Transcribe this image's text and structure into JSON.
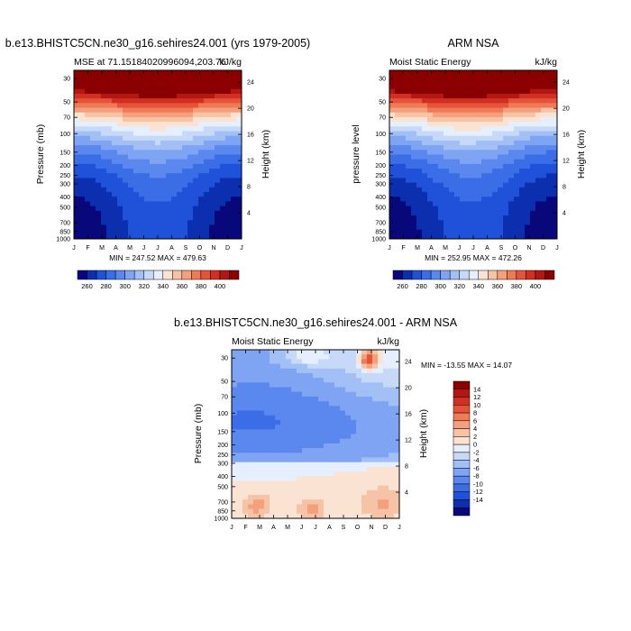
{
  "figure": {
    "panel_left": {
      "title": "b.e13.BHISTC5CN.ne30_g16.sehires24.001 (yrs 1979-2005)",
      "subtitle_left": "MSE at 71.15184020996094,203.76",
      "subtitle_right": "kJ/kg",
      "ylabel": "Pressure (mb)",
      "ylabel_right": "Height (km)",
      "minmax": "MIN = 247.52 MAX = 479.63"
    },
    "panel_right": {
      "title": "ARM NSA",
      "subtitle_left": "Moist Static Energy",
      "subtitle_right": "kJ/kg",
      "ylabel": "pressure level",
      "ylabel_right": "Height (km)",
      "minmax": "MIN = 252.95 MAX = 472.26"
    },
    "panel_diff": {
      "title": "b.e13.BHISTC5CN.ne30_g16.sehires24.001 - ARM NSA",
      "subtitle_left": "Moist Static Energy",
      "subtitle_right": "kJ/kg",
      "ylabel": "Pressure (mb)",
      "ylabel_right": "Height (km)",
      "minmax": "MIN = -13.55 MAX =  14.07"
    }
  },
  "colors": {
    "mse_scale": [
      "#08087a",
      "#0c2fb0",
      "#1f51d9",
      "#3a6de6",
      "#5a88ef",
      "#7ea4f3",
      "#a3c0f6",
      "#c6d9f8",
      "#e6efff",
      "#fbe3d3",
      "#f7c3a6",
      "#f4a07c",
      "#ef7a55",
      "#e5533a",
      "#d12f22",
      "#b31712",
      "#8b0000"
    ],
    "diff_scale": [
      "#08087a",
      "#0c2fb0",
      "#1f51d9",
      "#3a6de6",
      "#5a88ef",
      "#7ea4f3",
      "#a3c0f6",
      "#c6d9f8",
      "#e6efff",
      "#fbe3d3",
      "#f7c3a6",
      "#f4a07c",
      "#ef7a55",
      "#e5533a",
      "#d12f22",
      "#b31712",
      "#8b0000"
    ]
  },
  "chart_data": [
    {
      "id": "model",
      "type": "heatmap",
      "title": "b.e13.BHISTC5CN.ne30_g16.sehires24.001 (yrs 1979-2005)",
      "subtitle": "MSE at 71.15184020996094,203.76",
      "units": "kJ/kg",
      "x": [
        "J",
        "F",
        "M",
        "A",
        "M",
        "J",
        "J",
        "A",
        "S",
        "O",
        "N",
        "D",
        "J"
      ],
      "y_pressure": [
        30,
        50,
        70,
        100,
        150,
        200,
        250,
        300,
        400,
        500,
        700,
        850,
        1000
      ],
      "y_pressure_labels": [
        "30",
        "50",
        "70",
        "100",
        "150",
        "200",
        "250",
        "300",
        "400",
        "500",
        "700",
        "850",
        "1000"
      ],
      "height_ticks": [
        4,
        8,
        12,
        16,
        20,
        24
      ],
      "ylim": [
        1000,
        25
      ],
      "colorbar_levels": [
        250,
        260,
        270,
        280,
        290,
        300,
        310,
        320,
        330,
        340,
        350,
        360,
        370,
        380,
        390,
        400
      ],
      "colorbar_labels": [
        "260",
        "280",
        "300",
        "320",
        "340",
        "360",
        "380",
        "400"
      ],
      "min": 247.52,
      "max": 479.63
    },
    {
      "id": "obs",
      "type": "heatmap",
      "title": "ARM NSA",
      "subtitle": "Moist Static Energy",
      "units": "kJ/kg",
      "x": [
        "J",
        "F",
        "M",
        "A",
        "M",
        "J",
        "J",
        "A",
        "S",
        "O",
        "N",
        "D",
        "J"
      ],
      "y_pressure": [
        30,
        50,
        70,
        100,
        150,
        200,
        250,
        300,
        400,
        500,
        700,
        850,
        1000
      ],
      "y_pressure_labels": [
        "30",
        "50",
        "70",
        "100",
        "150",
        "200",
        "250",
        "300",
        "400",
        "500",
        "700",
        "850",
        "1000"
      ],
      "height_ticks": [
        4,
        8,
        12,
        16,
        20,
        24
      ],
      "ylim": [
        1000,
        25
      ],
      "colorbar_levels": [
        250,
        260,
        270,
        280,
        290,
        300,
        310,
        320,
        330,
        340,
        350,
        360,
        370,
        380,
        390,
        400
      ],
      "colorbar_labels": [
        "260",
        "280",
        "300",
        "320",
        "340",
        "360",
        "380",
        "400"
      ],
      "min": 252.95,
      "max": 472.26
    },
    {
      "id": "diff",
      "type": "heatmap",
      "title": "b.e13.BHISTC5CN.ne30_g16.sehires24.001 - ARM NSA",
      "subtitle": "Moist Static Energy",
      "units": "kJ/kg",
      "x": [
        "J",
        "F",
        "M",
        "A",
        "M",
        "J",
        "J",
        "A",
        "S",
        "O",
        "N",
        "D",
        "J"
      ],
      "y_pressure": [
        30,
        50,
        70,
        100,
        150,
        200,
        250,
        300,
        400,
        500,
        700,
        850,
        1000
      ],
      "y_pressure_labels": [
        "30",
        "50",
        "70",
        "100",
        "150",
        "200",
        "250",
        "300",
        "400",
        "500",
        "700",
        "850",
        "1000"
      ],
      "height_ticks": [
        4,
        8,
        12,
        16,
        20,
        24
      ],
      "ylim": [
        1000,
        25
      ],
      "colorbar_levels": [
        -15,
        -14,
        -12,
        -10,
        -8,
        -6,
        -4,
        -2,
        0,
        2,
        4,
        6,
        8,
        10,
        12,
        14,
        15
      ],
      "colorbar_labels": [
        "14",
        "12",
        "10",
        "8",
        "6",
        "4",
        "2",
        "0",
        "-2",
        "-4",
        "-6",
        "-8",
        "-10",
        "-12",
        "-14"
      ],
      "min": -13.55,
      "max": 14.07
    }
  ]
}
